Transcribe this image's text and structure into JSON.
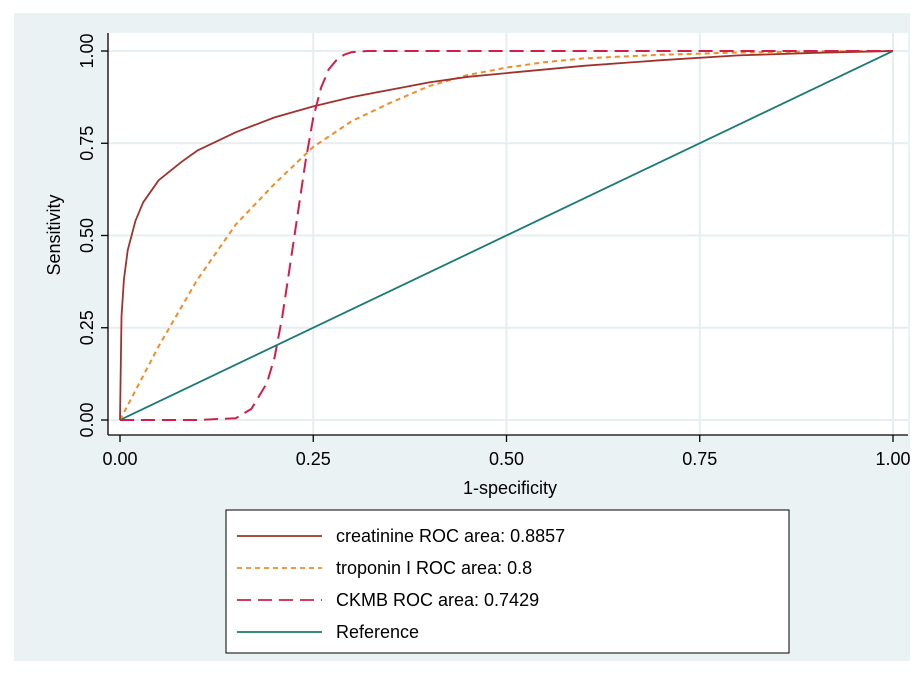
{
  "chart_data": {
    "type": "line",
    "title": "",
    "xlabel": "1-specificity",
    "ylabel": "Sensitivity",
    "xlim": [
      0,
      1
    ],
    "ylim": [
      0,
      1
    ],
    "xticks": [
      "0.00",
      "0.25",
      "0.50",
      "0.75",
      "1.00"
    ],
    "yticks": [
      "0.00",
      "0.25",
      "0.50",
      "0.75",
      "1.00"
    ],
    "grid": true,
    "legend_position": "bottom",
    "series": [
      {
        "name": "creatinine ROC area: 0.8857",
        "color": "#a0322d",
        "style": "solid",
        "x": [
          0,
          0.002,
          0.005,
          0.01,
          0.02,
          0.03,
          0.05,
          0.08,
          0.1,
          0.15,
          0.2,
          0.25,
          0.3,
          0.35,
          0.4,
          0.45,
          0.5,
          0.6,
          0.7,
          0.8,
          0.9,
          1.0
        ],
        "y": [
          0,
          0.28,
          0.38,
          0.46,
          0.54,
          0.59,
          0.65,
          0.7,
          0.73,
          0.78,
          0.82,
          0.85,
          0.875,
          0.895,
          0.915,
          0.93,
          0.94,
          0.96,
          0.975,
          0.988,
          0.995,
          1.0
        ]
      },
      {
        "name": "troponin I ROC area: 0.8",
        "color": "#f28c28",
        "style": "dotted",
        "x": [
          0,
          0.02,
          0.05,
          0.1,
          0.15,
          0.2,
          0.25,
          0.3,
          0.35,
          0.4,
          0.45,
          0.5,
          0.55,
          0.6,
          0.7,
          0.8,
          0.9,
          1.0
        ],
        "y": [
          0,
          0.08,
          0.2,
          0.38,
          0.53,
          0.64,
          0.74,
          0.81,
          0.86,
          0.905,
          0.935,
          0.955,
          0.97,
          0.98,
          0.99,
          0.996,
          0.999,
          1.0
        ]
      },
      {
        "name": "CKMB ROC area: 0.7429",
        "color": "#d21e48",
        "style": "dashed",
        "x": [
          0,
          0.1,
          0.15,
          0.17,
          0.19,
          0.2,
          0.21,
          0.22,
          0.23,
          0.24,
          0.25,
          0.26,
          0.27,
          0.28,
          0.29,
          0.3,
          0.32,
          0.4,
          0.6,
          0.8,
          1.0
        ],
        "y": [
          0,
          0,
          0.005,
          0.03,
          0.1,
          0.17,
          0.28,
          0.42,
          0.56,
          0.7,
          0.82,
          0.9,
          0.95,
          0.975,
          0.99,
          0.997,
          1.0,
          1.0,
          1.0,
          1.0,
          1.0
        ]
      },
      {
        "name": "Reference",
        "color": "#1a7a74",
        "style": "solid",
        "x": [
          0,
          1
        ],
        "y": [
          0,
          1
        ]
      }
    ]
  }
}
